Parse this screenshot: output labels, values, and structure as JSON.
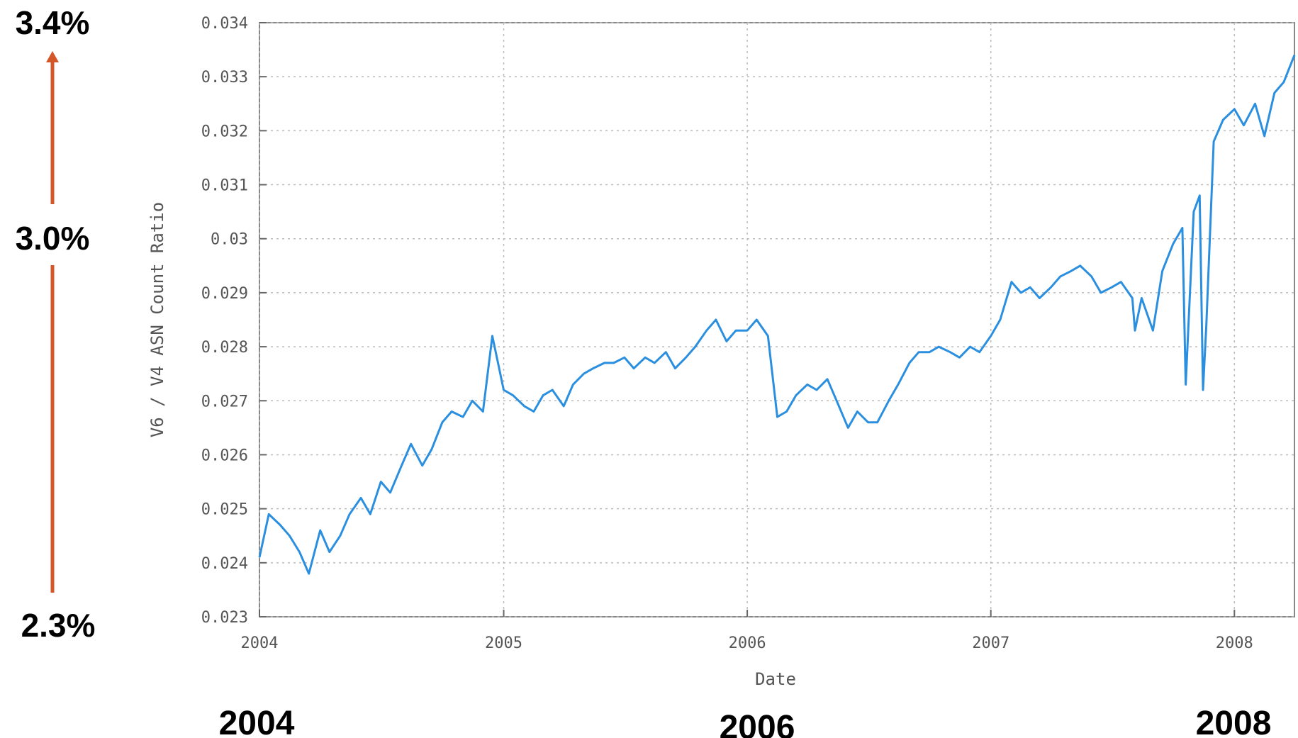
{
  "annotations": {
    "top_value": "3.4%",
    "middle_value": "3.0%",
    "bottom_value": "2.3%",
    "bottom_years": [
      "2004",
      "2006",
      "2008"
    ],
    "arrow_color": "#d4572a"
  },
  "chart_data": {
    "type": "line",
    "title": "",
    "xlabel": "Date",
    "ylabel": "V6 / V4 ASN Count Ratio",
    "xlim": [
      "2004-01-01",
      "2008-03-31"
    ],
    "ylim": [
      0.023,
      0.034
    ],
    "x_ticks": [
      "2004",
      "2005",
      "2006",
      "2007",
      "2008"
    ],
    "y_ticks": [
      "0.023",
      "0.024",
      "0.025",
      "0.026",
      "0.027",
      "0.028",
      "0.029",
      "0.03",
      "0.031",
      "0.032",
      "0.033",
      "0.034"
    ],
    "grid": true,
    "line_color": "#2b8fe0",
    "series": [
      {
        "x": [
          "2004-01-01",
          "2004-01-15",
          "2004-02-01",
          "2004-02-15",
          "2004-03-01",
          "2004-03-15",
          "2004-04-01",
          "2004-04-15",
          "2004-05-01",
          "2004-05-15",
          "2004-06-01",
          "2004-06-15",
          "2004-07-01",
          "2004-07-15",
          "2004-08-01",
          "2004-08-15",
          "2004-09-01",
          "2004-09-15",
          "2004-10-01",
          "2004-10-15",
          "2004-11-01",
          "2004-11-15",
          "2004-12-01",
          "2004-12-15",
          "2005-01-01",
          "2005-01-15",
          "2005-02-01",
          "2005-02-15",
          "2005-03-01",
          "2005-03-15",
          "2005-04-01",
          "2005-04-15",
          "2005-05-01",
          "2005-05-15",
          "2005-06-01",
          "2005-06-15",
          "2005-07-01",
          "2005-07-15",
          "2005-08-01",
          "2005-08-15",
          "2005-09-01",
          "2005-09-15",
          "2005-10-01",
          "2005-10-15",
          "2005-11-01",
          "2005-11-15",
          "2005-12-01",
          "2005-12-15",
          "2006-01-01",
          "2006-01-15",
          "2006-02-01",
          "2006-02-15",
          "2006-03-01",
          "2006-03-15",
          "2006-04-01",
          "2006-04-15",
          "2006-05-01",
          "2006-05-15",
          "2006-06-01",
          "2006-06-15",
          "2006-07-01",
          "2006-07-15",
          "2006-08-01",
          "2006-08-15",
          "2006-09-01",
          "2006-09-15",
          "2006-10-01",
          "2006-10-15",
          "2006-11-01",
          "2006-11-15",
          "2006-12-01",
          "2006-12-15",
          "2007-01-01",
          "2007-01-15",
          "2007-02-01",
          "2007-02-15",
          "2007-03-01",
          "2007-03-15",
          "2007-04-01",
          "2007-04-15",
          "2007-05-01",
          "2007-05-15",
          "2007-06-01",
          "2007-06-15",
          "2007-07-01",
          "2007-07-15",
          "2007-08-01",
          "2007-08-05",
          "2007-08-15",
          "2007-09-01",
          "2007-09-15",
          "2007-10-01",
          "2007-10-15",
          "2007-10-20",
          "2007-11-01",
          "2007-11-10",
          "2007-11-15",
          "2007-11-20",
          "2007-12-01",
          "2007-12-15",
          "2008-01-01",
          "2008-01-15",
          "2008-02-01",
          "2008-02-15",
          "2008-03-01",
          "2008-03-15",
          "2008-03-31"
        ],
        "y": [
          0.0241,
          0.0249,
          0.0247,
          0.0245,
          0.0242,
          0.0238,
          0.0246,
          0.0242,
          0.0245,
          0.0249,
          0.0252,
          0.0249,
          0.0255,
          0.0253,
          0.0258,
          0.0262,
          0.0258,
          0.0261,
          0.0266,
          0.0268,
          0.0267,
          0.027,
          0.0268,
          0.0282,
          0.0272,
          0.0271,
          0.0269,
          0.0268,
          0.0271,
          0.0272,
          0.0269,
          0.0273,
          0.0275,
          0.0276,
          0.0277,
          0.0277,
          0.0278,
          0.0276,
          0.0278,
          0.0277,
          0.0279,
          0.0276,
          0.0278,
          0.028,
          0.0283,
          0.0285,
          0.0281,
          0.0283,
          0.0283,
          0.0285,
          0.0282,
          0.0267,
          0.0268,
          0.0271,
          0.0273,
          0.0272,
          0.0274,
          0.027,
          0.0265,
          0.0268,
          0.0266,
          0.0266,
          0.027,
          0.0273,
          0.0277,
          0.0279,
          0.0279,
          0.028,
          0.0279,
          0.0278,
          0.028,
          0.0279,
          0.0282,
          0.0285,
          0.0292,
          0.029,
          0.0291,
          0.0289,
          0.0291,
          0.0293,
          0.0294,
          0.0295,
          0.0293,
          0.029,
          0.0291,
          0.0292,
          0.0289,
          0.0283,
          0.0289,
          0.0283,
          0.0294,
          0.0299,
          0.0302,
          0.0273,
          0.0305,
          0.0308,
          0.0272,
          0.0284,
          0.0318,
          0.0322,
          0.0324,
          0.0321,
          0.0325,
          0.0319,
          0.0327,
          0.0329,
          0.0334
        ]
      }
    ]
  }
}
